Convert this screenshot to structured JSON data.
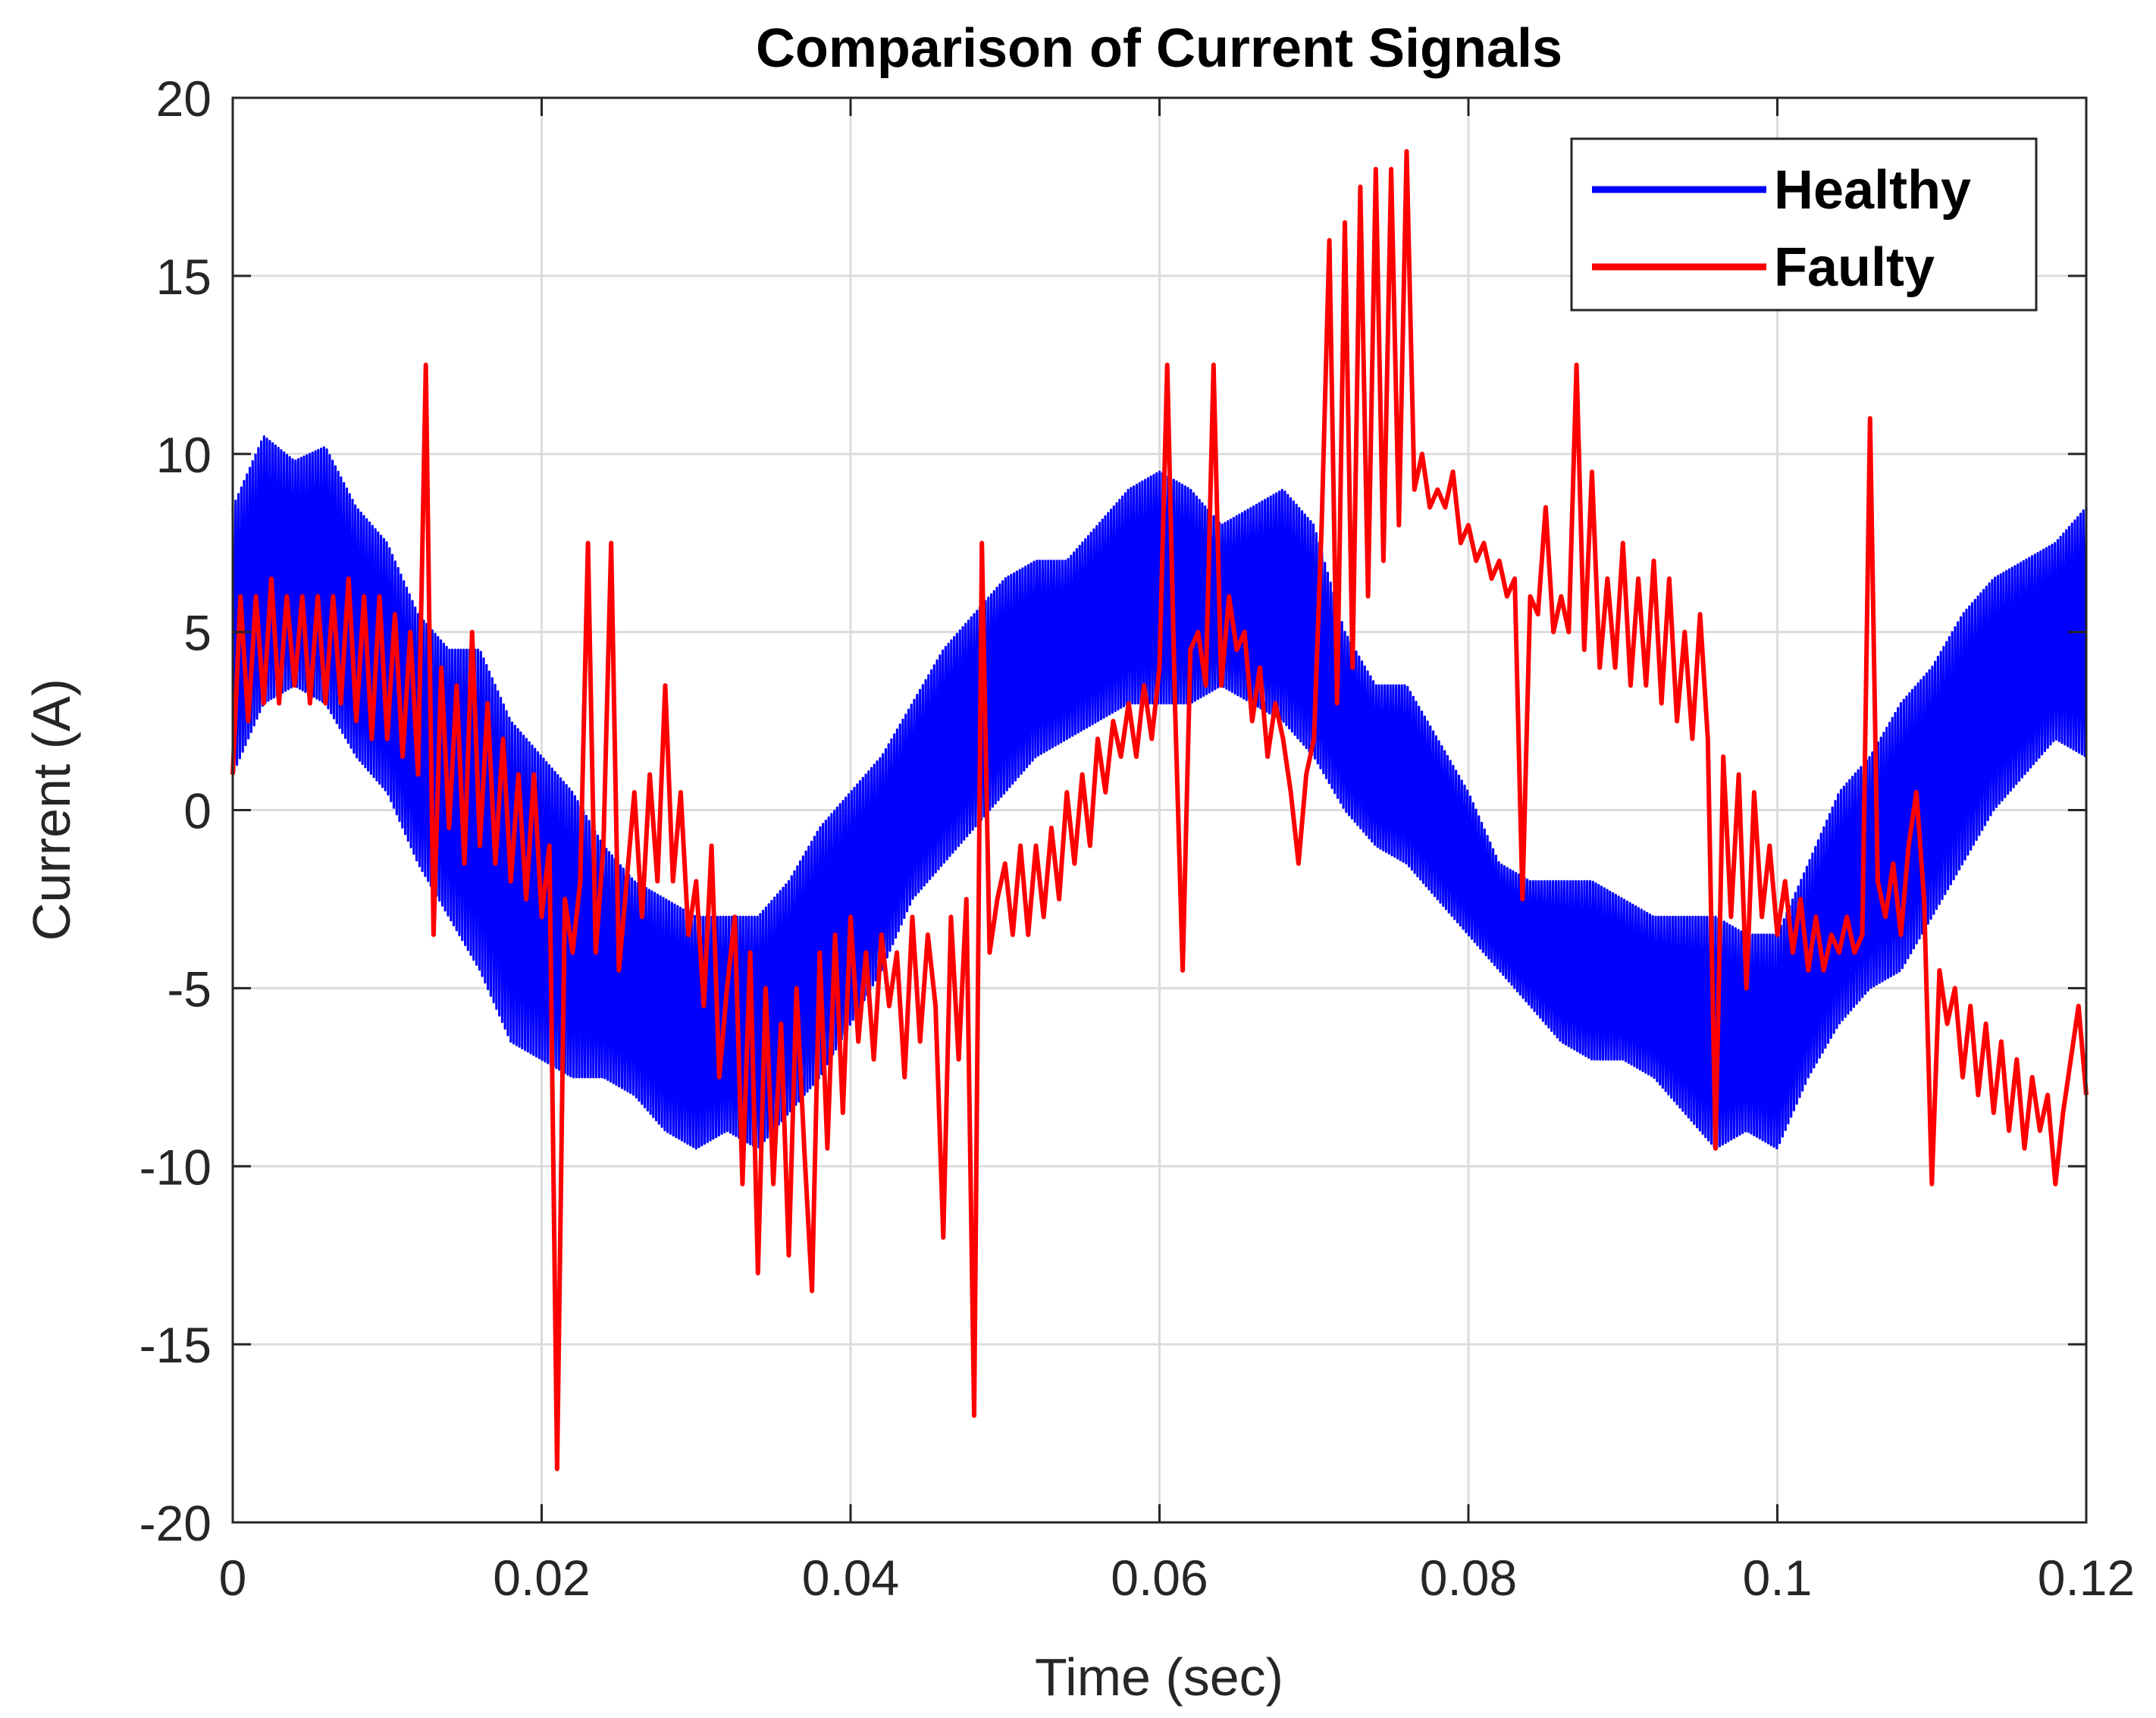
{
  "chart_data": {
    "type": "line",
    "title": "Comparison of Current Signals",
    "xlabel": "Time (sec)",
    "ylabel": "Current (A)",
    "xlim": [
      0,
      0.12
    ],
    "ylim": [
      -20,
      20
    ],
    "xticks": [
      0,
      0.02,
      0.04,
      0.06,
      0.08,
      0.1,
      0.12
    ],
    "xtick_labels": [
      "0",
      "0.02",
      "0.04",
      "0.06",
      "0.08",
      "0.1",
      "0.12"
    ],
    "yticks": [
      -20,
      -15,
      -10,
      -5,
      0,
      5,
      10,
      15,
      20
    ],
    "ytick_labels": [
      "-20",
      "-15",
      "-10",
      "-5",
      "0",
      "5",
      "10",
      "15",
      "20"
    ],
    "grid": true,
    "legend_position": "top-right",
    "series": [
      {
        "name": "Healthy",
        "color": "#0000ff",
        "x": [
          0,
          0.002,
          0.004,
          0.006,
          0.008,
          0.01,
          0.012,
          0.014,
          0.016,
          0.018,
          0.02,
          0.022,
          0.024,
          0.026,
          0.028,
          0.03,
          0.032,
          0.034,
          0.036,
          0.038,
          0.04,
          0.042,
          0.044,
          0.046,
          0.048,
          0.05,
          0.052,
          0.054,
          0.056,
          0.058,
          0.06,
          0.062,
          0.064,
          0.066,
          0.068,
          0.07,
          0.072,
          0.074,
          0.076,
          0.078,
          0.08,
          0.082,
          0.084,
          0.086,
          0.088,
          0.09,
          0.092,
          0.094,
          0.096,
          0.098,
          0.1,
          0.102,
          0.104,
          0.106,
          0.108,
          0.11,
          0.112,
          0.114,
          0.116,
          0.118,
          0.12
        ],
        "upper": [
          8.5,
          10.5,
          9.8,
          10.2,
          8.5,
          7.5,
          5.5,
          4.5,
          4.5,
          2.5,
          1.5,
          0.5,
          -1.0,
          -2.0,
          -2.5,
          -3.0,
          -3.0,
          -3.0,
          -2.0,
          -0.5,
          0.5,
          1.5,
          3.0,
          4.5,
          5.5,
          6.5,
          7.0,
          7.0,
          8.0,
          9.0,
          9.5,
          9.0,
          8.0,
          8.5,
          9.0,
          8.0,
          5.0,
          3.5,
          3.5,
          2.0,
          0.5,
          -1.5,
          -2.0,
          -2.0,
          -2.0,
          -2.5,
          -3.0,
          -3.0,
          -3.0,
          -3.5,
          -3.5,
          -1.5,
          0.5,
          1.5,
          3.0,
          4.0,
          5.5,
          6.5,
          7.0,
          7.5,
          8.5
        ],
        "lower": [
          1.0,
          3.0,
          3.5,
          3.0,
          1.5,
          0.5,
          -1.5,
          -3.0,
          -4.5,
          -6.5,
          -7.0,
          -7.5,
          -7.5,
          -8.0,
          -9.0,
          -9.5,
          -9.0,
          -9.5,
          -8.5,
          -7.5,
          -6.0,
          -4.5,
          -2.5,
          -1.5,
          -0.5,
          0.5,
          1.5,
          2.0,
          2.5,
          3.0,
          3.0,
          3.0,
          3.5,
          3.0,
          2.5,
          1.5,
          0.0,
          -1.0,
          -1.5,
          -2.5,
          -3.5,
          -4.5,
          -5.5,
          -6.5,
          -7.0,
          -7.0,
          -7.5,
          -8.5,
          -9.5,
          -9.0,
          -9.5,
          -7.5,
          -6.0,
          -5.0,
          -4.5,
          -3.0,
          -1.5,
          0.0,
          1.0,
          2.0,
          1.5
        ]
      },
      {
        "name": "Faulty",
        "color": "#ff0000",
        "x": [
          0.0,
          0.0005,
          0.001,
          0.0015,
          0.002,
          0.0025,
          0.003,
          0.0035,
          0.004,
          0.0045,
          0.005,
          0.0055,
          0.006,
          0.0065,
          0.007,
          0.0075,
          0.008,
          0.0085,
          0.009,
          0.0095,
          0.01,
          0.0105,
          0.011,
          0.0115,
          0.012,
          0.0125,
          0.013,
          0.0135,
          0.014,
          0.0145,
          0.015,
          0.0155,
          0.016,
          0.0165,
          0.017,
          0.0175,
          0.018,
          0.0185,
          0.019,
          0.0195,
          0.02,
          0.0205,
          0.021,
          0.0215,
          0.022,
          0.0225,
          0.023,
          0.0235,
          0.024,
          0.0245,
          0.025,
          0.0255,
          0.026,
          0.0265,
          0.027,
          0.0275,
          0.028,
          0.0285,
          0.029,
          0.0295,
          0.03,
          0.0305,
          0.031,
          0.0315,
          0.032,
          0.0325,
          0.033,
          0.0335,
          0.034,
          0.0345,
          0.035,
          0.0355,
          0.036,
          0.0365,
          0.037,
          0.0375,
          0.038,
          0.0385,
          0.039,
          0.0395,
          0.04,
          0.0405,
          0.041,
          0.0415,
          0.042,
          0.0425,
          0.043,
          0.0435,
          0.044,
          0.0445,
          0.045,
          0.0455,
          0.046,
          0.0465,
          0.047,
          0.0475,
          0.048,
          0.0485,
          0.049,
          0.0495,
          0.05,
          0.0505,
          0.051,
          0.0515,
          0.052,
          0.0525,
          0.053,
          0.0535,
          0.054,
          0.0545,
          0.055,
          0.0555,
          0.056,
          0.0565,
          0.057,
          0.0575,
          0.058,
          0.0585,
          0.059,
          0.0595,
          0.06,
          0.0605,
          0.061,
          0.0615,
          0.062,
          0.0625,
          0.063,
          0.0635,
          0.064,
          0.0645,
          0.065,
          0.0655,
          0.066,
          0.0665,
          0.067,
          0.0675,
          0.068,
          0.0685,
          0.069,
          0.0695,
          0.07,
          0.0705,
          0.071,
          0.0715,
          0.072,
          0.0725,
          0.073,
          0.0735,
          0.074,
          0.0745,
          0.075,
          0.0755,
          0.076,
          0.0765,
          0.077,
          0.0775,
          0.078,
          0.0785,
          0.079,
          0.0795,
          0.08,
          0.0805,
          0.081,
          0.0815,
          0.082,
          0.0825,
          0.083,
          0.0835,
          0.084,
          0.0845,
          0.085,
          0.0855,
          0.086,
          0.0865,
          0.087,
          0.0875,
          0.088,
          0.0885,
          0.089,
          0.0895,
          0.09,
          0.0905,
          0.091,
          0.0915,
          0.092,
          0.0925,
          0.093,
          0.0935,
          0.094,
          0.0945,
          0.095,
          0.0955,
          0.096,
          0.0965,
          0.097,
          0.0975,
          0.098,
          0.0985,
          0.099,
          0.0995,
          0.1,
          0.1005,
          0.101,
          0.1015,
          0.102,
          0.1025,
          0.103,
          0.1035,
          0.104,
          0.1045,
          0.105,
          0.1055,
          0.106,
          0.1065,
          0.107,
          0.1075,
          0.108,
          0.1085,
          0.109,
          0.1095,
          0.11,
          0.1105,
          0.111,
          0.1115,
          0.112,
          0.1125,
          0.113,
          0.1135,
          0.114,
          0.1145,
          0.115,
          0.1155,
          0.116,
          0.1165,
          0.117,
          0.1175,
          0.118,
          0.1185,
          0.119,
          0.1195,
          0.12
        ],
        "y": [
          1.0,
          6.0,
          2.5,
          6.0,
          3.0,
          6.5,
          3.0,
          6.0,
          3.5,
          6.0,
          3.0,
          6.0,
          3.0,
          6.0,
          3.0,
          6.5,
          2.5,
          6.0,
          2.0,
          6.0,
          2.0,
          5.5,
          1.5,
          5.0,
          1.0,
          12.5,
          -3.5,
          4.0,
          -0.5,
          3.5,
          -1.5,
          5.0,
          -1.0,
          3.0,
          -1.5,
          2.0,
          -2.0,
          1.0,
          -2.5,
          1.0,
          -3.0,
          -1.0,
          -18.5,
          -2.5,
          -4.0,
          -2.0,
          7.5,
          -4.0,
          -1.0,
          7.5,
          -4.5,
          -2.0,
          0.5,
          -3.0,
          1.0,
          -2.0,
          3.5,
          -2.0,
          0.5,
          -3.5,
          -2.0,
          -5.5,
          -1.0,
          -7.5,
          -5.0,
          -3.0,
          -10.5,
          -4.0,
          -13.0,
          -5.0,
          -10.5,
          -6.0,
          -12.5,
          -5.0,
          -9.5,
          -13.5,
          -4.0,
          -9.5,
          -3.5,
          -8.5,
          -3.0,
          -6.5,
          -4.0,
          -7.0,
          -3.5,
          -5.5,
          -4.0,
          -7.5,
          -3.0,
          -6.5,
          -3.5,
          -5.5,
          -12.0,
          -3.0,
          -7.0,
          -2.5,
          -17.0,
          7.5,
          -4.0,
          -2.5,
          -1.5,
          -3.5,
          -1.0,
          -3.5,
          -1.0,
          -3.0,
          -0.5,
          -2.5,
          0.5,
          -1.5,
          1.0,
          -1.0,
          2.0,
          0.5,
          2.5,
          1.5,
          3.0,
          1.5,
          3.5,
          2.0,
          4.0,
          12.5,
          3.0,
          -4.5,
          4.5,
          5.0,
          3.5,
          12.5,
          3.5,
          6.0,
          4.5,
          5.0,
          2.5,
          4.0,
          1.5,
          3.0,
          2.0,
          0.5,
          -1.5,
          1.0,
          2.0,
          8.0,
          16.0,
          3.0,
          16.5,
          4.0,
          17.5,
          6.0,
          18.0,
          7.0,
          18.0,
          8.0,
          18.5,
          9.0,
          10.0,
          8.5,
          9.0,
          8.5,
          9.5,
          7.5,
          8.0,
          7.0,
          7.5,
          6.5,
          7.0,
          6.0,
          6.5,
          -2.5,
          6.0,
          5.5,
          8.5,
          5.0,
          6.0,
          5.0,
          12.5,
          4.5,
          9.5,
          4.0,
          6.5,
          4.0,
          7.5,
          3.5,
          6.5,
          3.5,
          7.0,
          3.0,
          6.5,
          2.5,
          5.0,
          2.0,
          5.5,
          2.0,
          -9.5,
          1.5,
          -3.0,
          1.0,
          -5.0,
          0.5,
          -3.0,
          -1.0,
          -3.5,
          -2.0,
          -4.0,
          -2.5,
          -4.5,
          -3.0,
          -4.5,
          -3.5,
          -4.0,
          -3.0,
          -4.0,
          -3.5,
          11.0,
          -2.0,
          -3.0,
          -1.5,
          -3.5,
          -1.0,
          0.5,
          -2.5,
          -10.5,
          -4.5,
          -6.0,
          -5.0,
          -7.5,
          -5.5,
          -8.0,
          -6.0,
          -8.5,
          -6.5,
          -9.0,
          -7.0,
          -9.5,
          -7.5,
          -9.0,
          -8.0,
          -10.5,
          -8.5,
          -7.0,
          -5.5,
          -8.0
        ]
      }
    ]
  }
}
